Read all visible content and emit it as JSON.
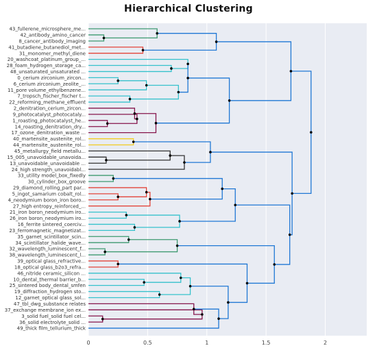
{
  "chart_data": {
    "type": "dendrogram",
    "title": "Hierarchical Clustering",
    "orientation": "horizontal",
    "xlim": [
      0,
      2.35
    ],
    "x_ticks": [
      0,
      0.5,
      1,
      1.5,
      2
    ],
    "x_tick_labels": [
      "0",
      "0.5",
      "1",
      "1.5",
      "2"
    ],
    "plot_background": "#e9ecf3",
    "grid_color": "#ffffff",
    "colors": {
      "green": "#3d9970",
      "red": "#e3443a",
      "cyan": "#35c1cc",
      "maroon": "#85144b",
      "black": "#333333",
      "yellow": "#f2cb1d",
      "blue": "#1f77d4"
    },
    "leaves": [
      "43_fullerene_microsphere_me...",
      "42_antibody_amino_cancer",
      "8_cancer_antibody_imaging",
      "41_butadiene_butanediol_met...",
      "31_monomer_methyl_diene",
      "20_washcoat_platinum_group_...",
      "28_foam_hydrogen_storage_ca...",
      "48_unsaturated_unsaturated ...",
      "0_cerium zirconium_zircon...",
      "6_cerium zirconium_zeolite_...",
      "11_pore volume_ethylbenzene...",
      "7_tropsch_fischer_fischer t...",
      "22_reforming_methane_effluent",
      "2_denitration_cerium_zircon...",
      "9_photocatalyst_photocataly...",
      "1_roasting_photocatalyst_he...",
      "14_roasting_denitration_dry...",
      "17_ozone_denitration_waste ...",
      "40_martensite_austenite_rol...",
      "44_martensite_austenite_rol...",
      "45_metallurgy_field metallu...",
      "15_005_unavoidable_unavoida...",
      "13_unavoidable_unavoidable ...",
      "24_high strength_unavoidabl...",
      "33_utility model_box_fixedly",
      "30_cylinder_box_groove",
      "29_diamond_rolling_part par...",
      "5_ingot_samarium cobalt_rol...",
      "4_neodymium boron_iron boro...",
      "27_high entropy_reinforced_...",
      "21_iron boron_neodymium iro...",
      "26_iron boron_neodymium iro...",
      "16_ferrite sintered_coerciv...",
      "23_ferromagnetic_magnetizat...",
      "35_garnet_scintillator_scin...",
      "34_scintillator_halide_wave...",
      "32_wavelength_luminescent_f...",
      "38_wavelength_luminescent_l...",
      "39_optical glass_refractive...",
      "18_optical glass_b2o3_refra...",
      "46_nitride ceramic_silicon ...",
      "10_dental_thermal barrier_b...",
      "25_sintered body_dental_smfen",
      "19_diffraction_hydrogen sto...",
      "12_garnet_optical glass_sol...",
      "47_tbl_dwg_substance relates",
      "37_exchange membrane_ion ex...",
      "3_solid fuel_solid fuel cel...",
      "36_solid electrolyte_solid ...",
      "49_thick film_tellurium_thick"
    ],
    "merges": [
      {
        "id": "c1",
        "left": "L1",
        "right": "L2",
        "height": 0.13,
        "color": "green"
      },
      {
        "id": "c2",
        "left": "L0",
        "right": "c1",
        "height": 0.58,
        "color": "green"
      },
      {
        "id": "c3",
        "left": "L3",
        "right": "L4",
        "height": 0.46,
        "color": "red"
      },
      {
        "id": "c4",
        "left": "c2",
        "right": "c3",
        "height": 1.08,
        "color": "blue"
      },
      {
        "id": "c5",
        "left": "L6",
        "right": "L7",
        "height": 0.7,
        "color": "cyan"
      },
      {
        "id": "c6",
        "left": "L5",
        "right": "c5",
        "height": 0.84,
        "color": "cyan"
      },
      {
        "id": "c7",
        "left": "L8",
        "right": "L9",
        "height": 0.25,
        "color": "cyan"
      },
      {
        "id": "c8",
        "left": "c7",
        "right": "L10",
        "height": 0.49,
        "color": "cyan"
      },
      {
        "id": "c9",
        "left": "L11",
        "right": "L12",
        "height": 0.35,
        "color": "cyan"
      },
      {
        "id": "c10",
        "left": "c8",
        "right": "c9",
        "height": 0.76,
        "color": "cyan"
      },
      {
        "id": "c11",
        "left": "c6",
        "right": "c10",
        "height": 0.84,
        "color": "blue"
      },
      {
        "id": "c12",
        "left": "L15",
        "right": "L16",
        "height": 0.16,
        "color": "maroon"
      },
      {
        "id": "c13",
        "left": "L14",
        "right": "c12",
        "height": 0.41,
        "color": "maroon"
      },
      {
        "id": "c14",
        "left": "L13",
        "right": "c13",
        "height": 0.39,
        "color": "maroon"
      },
      {
        "id": "c15",
        "left": "c14",
        "right": "L17",
        "height": 0.57,
        "color": "maroon"
      },
      {
        "id": "c16",
        "left": "c11",
        "right": "c15",
        "height": 1.19,
        "color": "blue"
      },
      {
        "id": "c17",
        "left": "c4",
        "right": "c16",
        "height": 1.71,
        "color": "blue"
      },
      {
        "id": "c18",
        "left": "L18",
        "right": "L19",
        "height": 0.38,
        "color": "yellow"
      },
      {
        "id": "c19",
        "left": "L21",
        "right": "L22",
        "height": 0.15,
        "color": "black"
      },
      {
        "id": "c20",
        "left": "L20",
        "right": "c19",
        "height": 0.69,
        "color": "black"
      },
      {
        "id": "c21",
        "left": "c20",
        "right": "L23",
        "height": 0.81,
        "color": "black"
      },
      {
        "id": "c22",
        "left": "c18",
        "right": "c21",
        "height": 1.03,
        "color": "blue"
      },
      {
        "id": "c23",
        "left": "L24",
        "right": "L25",
        "height": 0.21,
        "color": "green"
      },
      {
        "id": "c24",
        "left": "L27",
        "right": "L28",
        "height": 0.25,
        "color": "red"
      },
      {
        "id": "c25",
        "left": "L26",
        "right": "c24",
        "height": 0.49,
        "color": "red"
      },
      {
        "id": "c26",
        "left": "c25",
        "right": "L29",
        "height": 0.52,
        "color": "red"
      },
      {
        "id": "c27",
        "left": "c23",
        "right": "c26",
        "height": 1.13,
        "color": "blue"
      },
      {
        "id": "c28",
        "left": "L30",
        "right": "L31",
        "height": 0.32,
        "color": "cyan"
      },
      {
        "id": "c29",
        "left": "L32",
        "right": "L33",
        "height": 0.39,
        "color": "cyan"
      },
      {
        "id": "c30",
        "left": "c28",
        "right": "c29",
        "height": 0.77,
        "color": "cyan"
      },
      {
        "id": "c31",
        "left": "c27",
        "right": "c30",
        "height": 1.24,
        "color": "blue"
      },
      {
        "id": "c32",
        "left": "L34",
        "right": "L35",
        "height": 0.34,
        "color": "green"
      },
      {
        "id": "c33",
        "left": "L36",
        "right": "L37",
        "height": 0.14,
        "color": "green"
      },
      {
        "id": "c34",
        "left": "c32",
        "right": "c33",
        "height": 0.75,
        "color": "green"
      },
      {
        "id": "c35",
        "left": "L38",
        "right": "L39",
        "height": 0.25,
        "color": "red"
      },
      {
        "id": "c36",
        "left": "L41",
        "right": "L42",
        "height": 0.47,
        "color": "cyan"
      },
      {
        "id": "c37",
        "left": "L40",
        "right": "c36",
        "height": 0.78,
        "color": "cyan"
      },
      {
        "id": "c38",
        "left": "L43",
        "right": "L44",
        "height": 0.6,
        "color": "cyan"
      },
      {
        "id": "c39",
        "left": "c37",
        "right": "c38",
        "height": 0.86,
        "color": "cyan"
      },
      {
        "id": "c40",
        "left": "L47",
        "right": "L48",
        "height": 0.12,
        "color": "maroon"
      },
      {
        "id": "c41",
        "left": "L46",
        "right": "c40",
        "height": 0.96,
        "color": "maroon"
      },
      {
        "id": "c42",
        "left": "L45",
        "right": "c41",
        "height": 0.89,
        "color": "maroon"
      },
      {
        "id": "c43",
        "left": "c42",
        "right": "L49",
        "height": 1.1,
        "color": "blue"
      },
      {
        "id": "c44",
        "left": "c39",
        "right": "c43",
        "height": 1.18,
        "color": "blue"
      },
      {
        "id": "c45",
        "left": "c35",
        "right": "c44",
        "height": 1.34,
        "color": "blue"
      },
      {
        "id": "c46",
        "left": "c34",
        "right": "c45",
        "height": 1.57,
        "color": "blue"
      },
      {
        "id": "c47",
        "left": "c31",
        "right": "c46",
        "height": 1.7,
        "color": "blue"
      },
      {
        "id": "c48",
        "left": "c22",
        "right": "c47",
        "height": 1.72,
        "color": "blue"
      },
      {
        "id": "c49",
        "left": "c17",
        "right": "c48",
        "height": 1.88,
        "color": "blue"
      }
    ]
  }
}
